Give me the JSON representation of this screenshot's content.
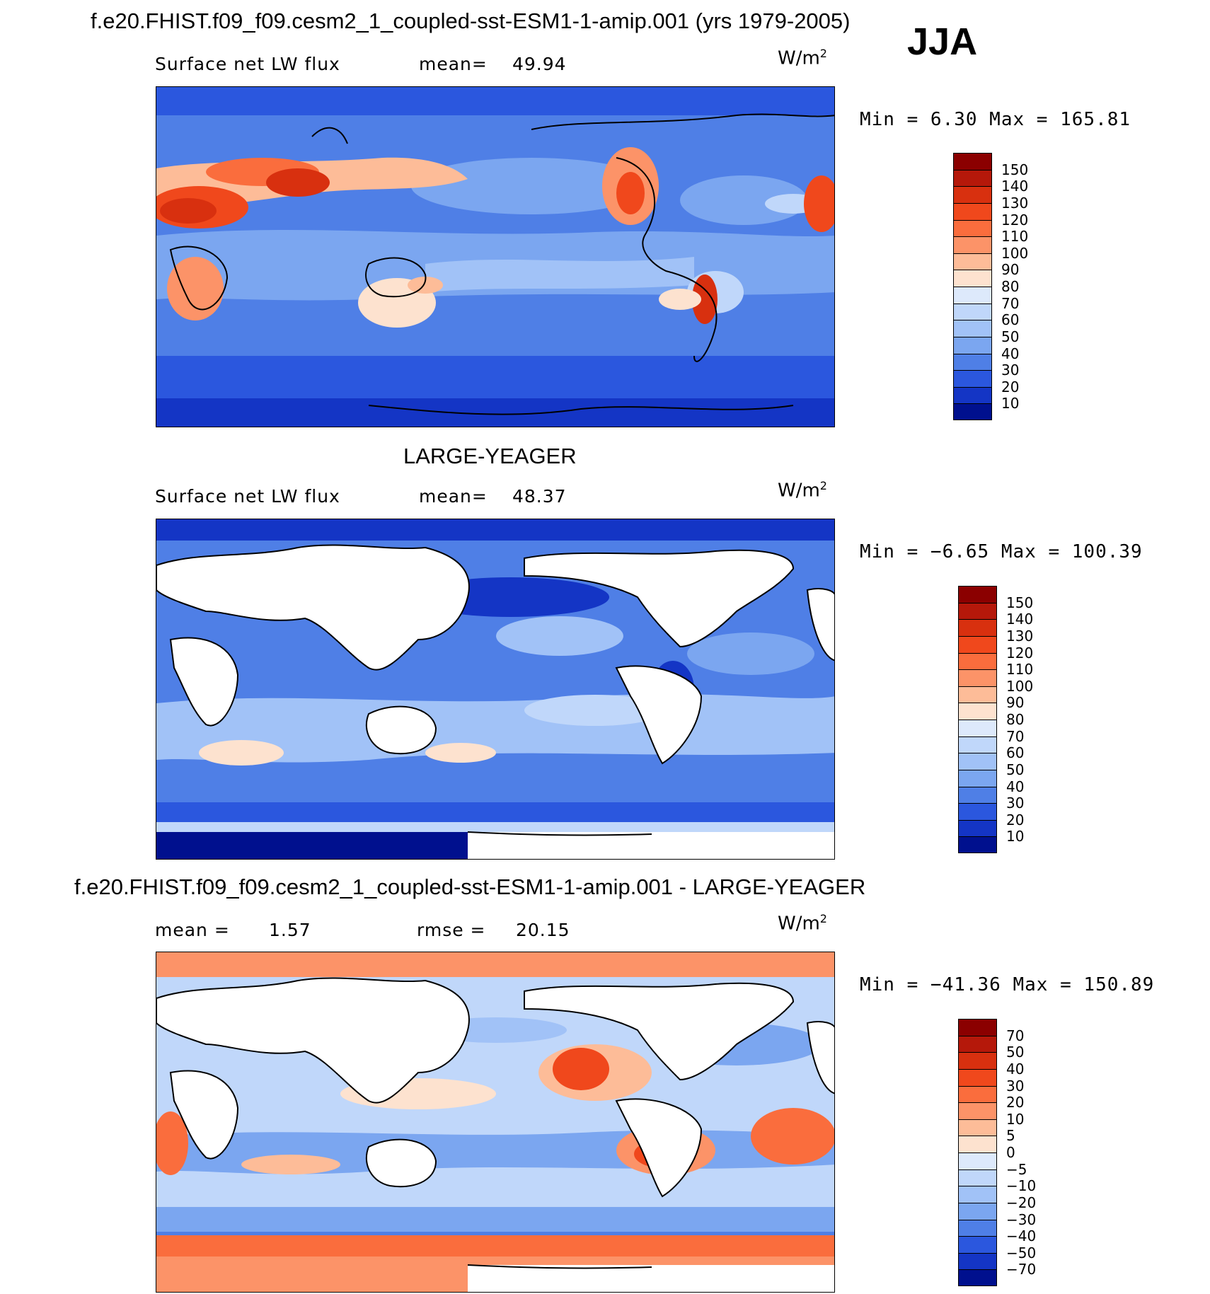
{
  "figure": {
    "season": "JJA",
    "panel1": {
      "title": "f.e20.FHIST.f09_f09.cesm2_1_coupled-sst-ESM1-1-amip.001 (yrs 1979-2005)",
      "variable": "Surface net LW flux",
      "mean_label": "mean=",
      "mean_value": "49.94",
      "units": "W/m",
      "units_sup": "2",
      "range_text": "Min =    6.30 Max = 165.81",
      "min": 6.3,
      "max": 165.81
    },
    "panel2": {
      "title": "LARGE-YEAGER",
      "variable": "Surface net LW flux",
      "mean_label": "mean=",
      "mean_value": "48.37",
      "units": "W/m",
      "units_sup": "2",
      "range_text": "Min =  −6.65 Max = 100.39",
      "min": -6.65,
      "max": 100.39
    },
    "panel3": {
      "title": "f.e20.FHIST.f09_f09.cesm2_1_coupled-sst-ESM1-1-amip.001 - LARGE-YEAGER",
      "mean_label": "mean =",
      "mean_value": "1.57",
      "rmse_label": "rmse =",
      "rmse_value": "20.15",
      "units": "W/m",
      "units_sup": "2",
      "range_text": "Min = −41.36 Max = 150.89",
      "min": -41.36,
      "max": 150.89
    }
  },
  "colorbars": {
    "abs": {
      "labels": [
        "150",
        "140",
        "130",
        "120",
        "110",
        "100",
        "90",
        "80",
        "70",
        "60",
        "50",
        "40",
        "30",
        "20",
        "10"
      ],
      "colors": [
        "#8b0000",
        "#b5180a",
        "#d8300f",
        "#f0481c",
        "#fa6d3d",
        "#fc9368",
        "#fdbc98",
        "#fde2cf",
        "#dde9fb",
        "#c0d7fa",
        "#a1c2f7",
        "#7ba6f0",
        "#4f7fe6",
        "#2b57de",
        "#1435c5",
        "#00108e"
      ]
    },
    "diff": {
      "labels": [
        "70",
        "50",
        "40",
        "30",
        "20",
        "10",
        "5",
        "0",
        "−5",
        "−10",
        "−20",
        "−30",
        "−40",
        "−50",
        "−70"
      ],
      "colors": [
        "#8b0000",
        "#b5180a",
        "#d8300f",
        "#f0481c",
        "#fa6d3d",
        "#fc9368",
        "#fdbc98",
        "#fde2cf",
        "#dde9fb",
        "#c0d7fa",
        "#a1c2f7",
        "#7ba6f0",
        "#4f7fe6",
        "#2b57de",
        "#1435c5",
        "#00108e"
      ]
    }
  }
}
